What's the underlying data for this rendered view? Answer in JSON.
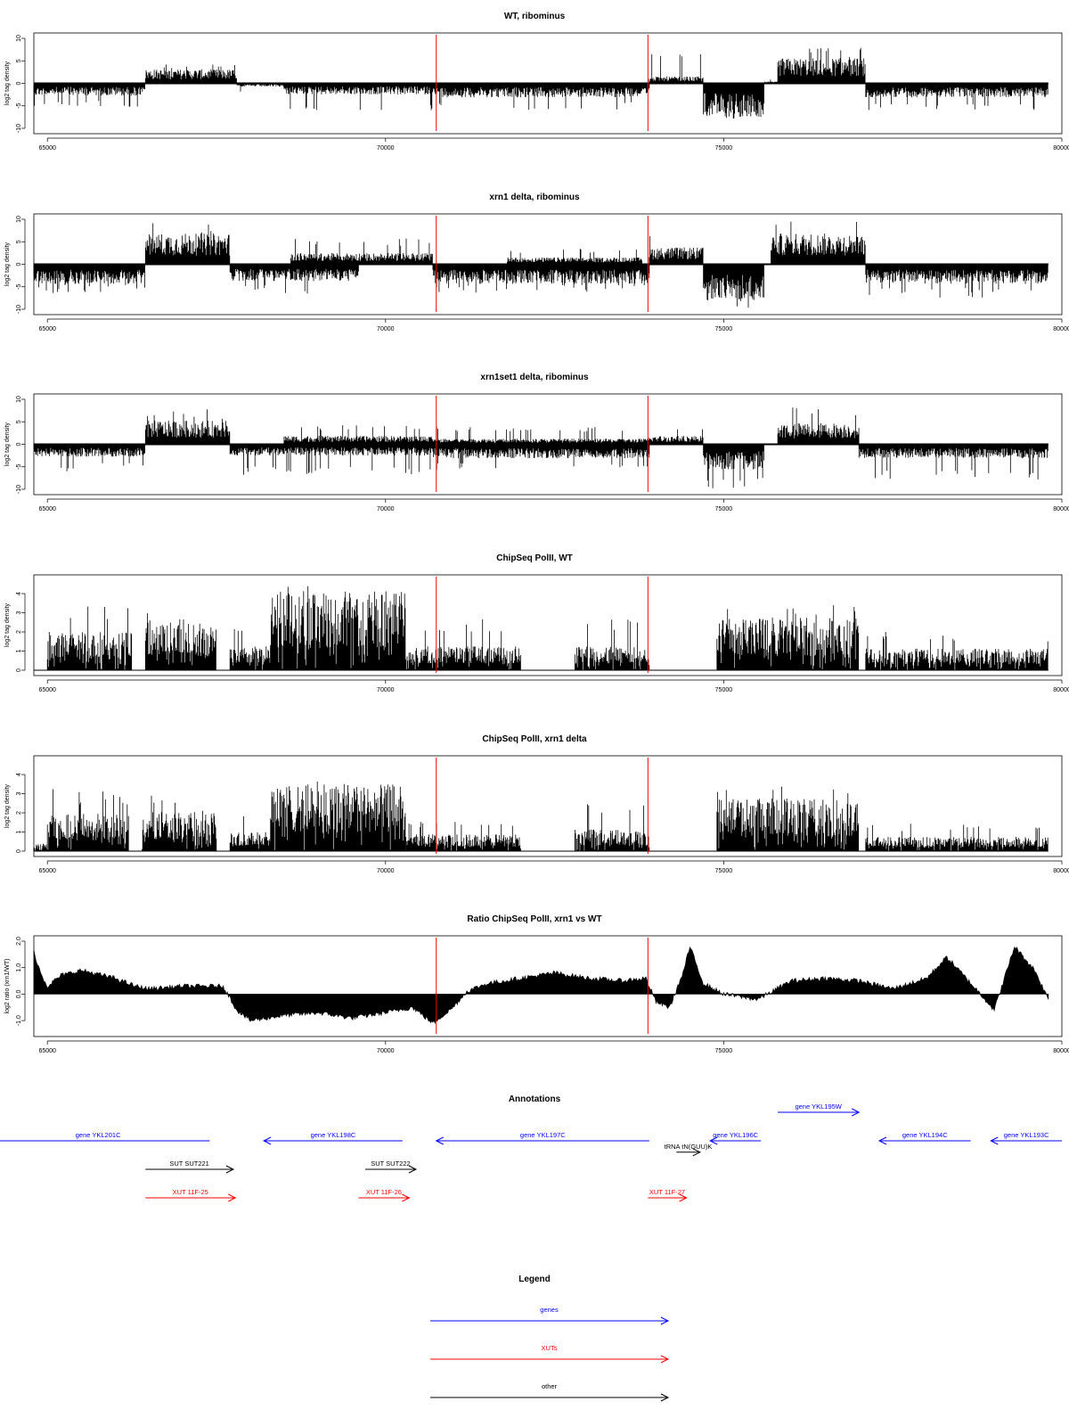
{
  "colors": {
    "mark": "#000000",
    "frame": "#000000",
    "marker": "#ff0000",
    "genes": "#0000ff",
    "xuts": "#ff0000",
    "other": "#000000"
  },
  "x_axis": {
    "range": [
      64800,
      80000
    ],
    "ticks": [
      65000,
      70000,
      75000,
      80000
    ],
    "tick_labels": [
      "65000",
      "70000",
      "75000",
      "80000"
    ]
  },
  "vertical_markers": [
    70750,
    73880
  ],
  "chart_data": [
    {
      "type": "bar",
      "title": "WT, ribominus",
      "ylabel": "log2 tag density",
      "ylim": [
        -10,
        10
      ],
      "yticks": [
        10,
        5,
        0,
        -5,
        -10
      ],
      "x_range": [
        64800,
        79800
      ],
      "segments": [
        {
          "x": [
            64800,
            66450
          ],
          "strand": "minus",
          "level": 2.2,
          "peak": 5.5
        },
        {
          "x": [
            66450,
            67800
          ],
          "strand": "plus",
          "level": 2.5,
          "peak": 4.2
        },
        {
          "x": [
            67800,
            68500
          ],
          "strand": "minus",
          "level": 0.6,
          "peak": 2.0
        },
        {
          "x": [
            68500,
            70700
          ],
          "strand": "minus",
          "level": 2.0,
          "peak": 6.0
        },
        {
          "x": [
            70700,
            73900
          ],
          "strand": "minus",
          "level": 2.5,
          "peak": 6.0
        },
        {
          "x": [
            73900,
            74700
          ],
          "strand": "plus",
          "level": 1.2,
          "peak": 6.8
        },
        {
          "x": [
            74700,
            75600
          ],
          "strand": "minus",
          "level": 6.0,
          "peak": 8.5
        },
        {
          "x": [
            75600,
            75800
          ],
          "strand": "plus",
          "level": 0.3,
          "peak": 1.0
        },
        {
          "x": [
            75800,
            77100
          ],
          "strand": "plus",
          "level": 4.5,
          "peak": 8.0
        },
        {
          "x": [
            77100,
            79800
          ],
          "strand": "minus",
          "level": 2.5,
          "peak": 6.2
        }
      ]
    },
    {
      "type": "bar",
      "title": "xrn1 delta, ribominus",
      "ylabel": "log2 tag density",
      "ylim": [
        -10,
        10
      ],
      "yticks": [
        10,
        5,
        0,
        -5,
        -10
      ],
      "x_range": [
        64800,
        79800
      ],
      "segments": [
        {
          "x": [
            64800,
            66450
          ],
          "strand": "minus",
          "level": 3.5,
          "peak": 6.5
        },
        {
          "x": [
            66450,
            67700
          ],
          "strand": "plus",
          "level": 5.5,
          "peak": 9.3
        },
        {
          "x": [
            67700,
            69600
          ],
          "strand": "minus",
          "level": 3.0,
          "peak": 6.5
        },
        {
          "x": [
            68600,
            70700
          ],
          "strand": "plus",
          "level": 2.0,
          "peak": 5.8
        },
        {
          "x": [
            70700,
            73900
          ],
          "strand": "minus",
          "level": 3.5,
          "peak": 6.5
        },
        {
          "x": [
            71800,
            73800
          ],
          "strand": "plus",
          "level": 1.2,
          "peak": 3.5
        },
        {
          "x": [
            73900,
            74700
          ],
          "strand": "plus",
          "level": 3.0,
          "peak": 7.5
        },
        {
          "x": [
            74700,
            75600
          ],
          "strand": "minus",
          "level": 6.5,
          "peak": 10.0
        },
        {
          "x": [
            75700,
            77100
          ],
          "strand": "plus",
          "level": 5.5,
          "peak": 9.5
        },
        {
          "x": [
            77100,
            79800
          ],
          "strand": "minus",
          "level": 3.5,
          "peak": 7.5
        }
      ]
    },
    {
      "type": "bar",
      "title": "xrn1set1 delta, ribominus",
      "ylabel": "log2 tag density",
      "ylim": [
        -10,
        10
      ],
      "yticks": [
        10,
        5,
        0,
        -5,
        -10
      ],
      "x_range": [
        64800,
        79800
      ],
      "segments": [
        {
          "x": [
            64800,
            66450
          ],
          "strand": "minus",
          "level": 2.2,
          "peak": 6.0
        },
        {
          "x": [
            66450,
            67700
          ],
          "strand": "plus",
          "level": 4.2,
          "peak": 8.0
        },
        {
          "x": [
            67700,
            70700
          ],
          "strand": "minus",
          "level": 2.0,
          "peak": 7.0
        },
        {
          "x": [
            68500,
            70700
          ],
          "strand": "plus",
          "level": 1.5,
          "peak": 4.5
        },
        {
          "x": [
            70700,
            73900
          ],
          "strand": "minus",
          "level": 2.5,
          "peak": 6.0
        },
        {
          "x": [
            70700,
            73900
          ],
          "strand": "plus",
          "level": 1.0,
          "peak": 4.0
        },
        {
          "x": [
            73900,
            74700
          ],
          "strand": "plus",
          "level": 1.5,
          "peak": 4.2
        },
        {
          "x": [
            74700,
            75600
          ],
          "strand": "minus",
          "level": 4.5,
          "peak": 9.8
        },
        {
          "x": [
            75800,
            77000
          ],
          "strand": "plus",
          "level": 3.8,
          "peak": 8.5
        },
        {
          "x": [
            77000,
            79800
          ],
          "strand": "minus",
          "level": 2.5,
          "peak": 8.0
        }
      ]
    },
    {
      "type": "bar",
      "title": "ChipSeq PolII, WT",
      "ylabel": "log2 tag density",
      "ylim": [
        0,
        4.7
      ],
      "yticks": [
        0,
        1,
        2,
        3,
        4
      ],
      "x_range": [
        64800,
        79800
      ],
      "segments": [
        {
          "x": [
            64800,
            65000
          ],
          "level": 0,
          "peak": 0
        },
        {
          "x": [
            65000,
            66250
          ],
          "level": 1.6,
          "peak": 3.5
        },
        {
          "x": [
            66450,
            67500
          ],
          "level": 2.0,
          "peak": 3.2
        },
        {
          "x": [
            67700,
            68300
          ],
          "level": 1.0,
          "peak": 2.2
        },
        {
          "x": [
            68300,
            70300
          ],
          "level": 3.3,
          "peak": 4.6
        },
        {
          "x": [
            70300,
            72000
          ],
          "level": 1.0,
          "peak": 2.8
        },
        {
          "x": [
            72800,
            73900
          ],
          "level": 1.0,
          "peak": 2.8
        },
        {
          "x": [
            74900,
            77000
          ],
          "level": 2.2,
          "peak": 3.4
        },
        {
          "x": [
            77100,
            79800
          ],
          "level": 0.9,
          "peak": 2.0
        }
      ]
    },
    {
      "type": "bar",
      "title": "ChipSeq PolII, xrn1 delta",
      "ylabel": "log2 tag density",
      "ylim": [
        0,
        4.7
      ],
      "yticks": [
        0,
        1,
        2,
        3,
        4
      ],
      "x_range": [
        64800,
        79800
      ],
      "segments": [
        {
          "x": [
            64800,
            65000
          ],
          "level": 0.3,
          "peak": 0.4
        },
        {
          "x": [
            65000,
            66200
          ],
          "level": 1.6,
          "peak": 3.3
        },
        {
          "x": [
            66400,
            67500
          ],
          "level": 1.7,
          "peak": 3.1
        },
        {
          "x": [
            67700,
            68300
          ],
          "level": 0.8,
          "peak": 2.0
        },
        {
          "x": [
            68300,
            70300
          ],
          "level": 2.8,
          "peak": 3.7
        },
        {
          "x": [
            70300,
            72000
          ],
          "level": 0.7,
          "peak": 1.8
        },
        {
          "x": [
            72800,
            73900
          ],
          "level": 0.9,
          "peak": 2.6
        },
        {
          "x": [
            74900,
            77000
          ],
          "level": 2.2,
          "peak": 3.4
        },
        {
          "x": [
            77100,
            79800
          ],
          "level": 0.6,
          "peak": 1.5
        }
      ]
    },
    {
      "type": "area",
      "title": "Ratio ChipSeq PolII, xrn1 vs WT",
      "ylabel": "log2 ratio (xrn1/WT)",
      "ylim": [
        -1.4,
        2.0
      ],
      "yticks": [
        2.0,
        1.0,
        0.0,
        -1.0
      ],
      "x": [
        64800,
        64900,
        65000,
        65200,
        65500,
        66000,
        66300,
        66500,
        67000,
        67600,
        67800,
        68000,
        68500,
        69000,
        69500,
        70000,
        70400,
        70700,
        71000,
        71200,
        71500,
        72000,
        72500,
        73000,
        73500,
        73850,
        74000,
        74200,
        74400,
        74500,
        74700,
        75000,
        75500,
        76000,
        76500,
        77000,
        77500,
        78000,
        78300,
        78800,
        79000,
        79300,
        79600,
        79800
      ],
      "y": [
        1.6,
        0.8,
        0.3,
        0.7,
        0.9,
        0.6,
        0.3,
        0.2,
        0.3,
        0.3,
        -0.6,
        -1.0,
        -0.8,
        -0.7,
        -0.9,
        -0.7,
        -0.5,
        -1.1,
        -0.5,
        0.1,
        0.4,
        0.6,
        0.8,
        0.6,
        0.5,
        0.6,
        -0.3,
        -0.5,
        0.8,
        1.8,
        0.4,
        0.0,
        -0.2,
        0.5,
        0.6,
        0.5,
        0.2,
        0.6,
        1.4,
        0.0,
        -0.6,
        1.8,
        0.9,
        -0.2
      ]
    }
  ],
  "annotations": {
    "title": "Annotations",
    "rows": [
      {
        "label": "gene YKL201C",
        "color": "genes",
        "x1": 64100,
        "x2": 67400,
        "dir": "none",
        "row": 0
      },
      {
        "label": "gene YKL198C",
        "color": "genes",
        "x1": 68200,
        "x2": 70250,
        "dir": "left",
        "row": 0
      },
      {
        "label": "gene YKL197C",
        "color": "genes",
        "x1": 70750,
        "x2": 73900,
        "dir": "left",
        "row": 0
      },
      {
        "label": "gene YKL196C",
        "color": "genes",
        "x1": 74800,
        "x2": 75550,
        "dir": "left",
        "row": 0
      },
      {
        "label": "gene YKL195W",
        "color": "genes",
        "x1": 75800,
        "x2": 77000,
        "dir": "right",
        "row": -1
      },
      {
        "label": "gene YKL194C",
        "color": "genes",
        "x1": 77300,
        "x2": 78650,
        "dir": "left",
        "row": 0
      },
      {
        "label": "gene YKL193C",
        "color": "genes",
        "x1": 78950,
        "x2": 80000,
        "dir": "left",
        "row": 0
      },
      {
        "label": "tRNA tN(GUU)K",
        "color": "other",
        "x1": 74300,
        "x2": 74650,
        "dir": "right",
        "row": 0.4
      },
      {
        "label": "SUT SUT221",
        "color": "other",
        "x1": 66450,
        "x2": 67750,
        "dir": "right",
        "row": 1
      },
      {
        "label": "SUT SUT222",
        "color": "other",
        "x1": 69700,
        "x2": 70450,
        "dir": "right",
        "row": 1
      },
      {
        "label": "XUT 11F-25",
        "color": "xuts",
        "x1": 66450,
        "x2": 67780,
        "dir": "right",
        "row": 2
      },
      {
        "label": "XUT 11F-26",
        "color": "xuts",
        "x1": 69600,
        "x2": 70350,
        "dir": "right",
        "row": 2
      },
      {
        "label": "XUT 11F-27",
        "color": "xuts",
        "x1": 73880,
        "x2": 74450,
        "dir": "right",
        "row": 2
      }
    ]
  },
  "legend": {
    "title": "Legend",
    "items": [
      {
        "label": "genes",
        "color": "genes"
      },
      {
        "label": "XUTs",
        "color": "xuts"
      },
      {
        "label": "other",
        "color": "other"
      }
    ]
  }
}
